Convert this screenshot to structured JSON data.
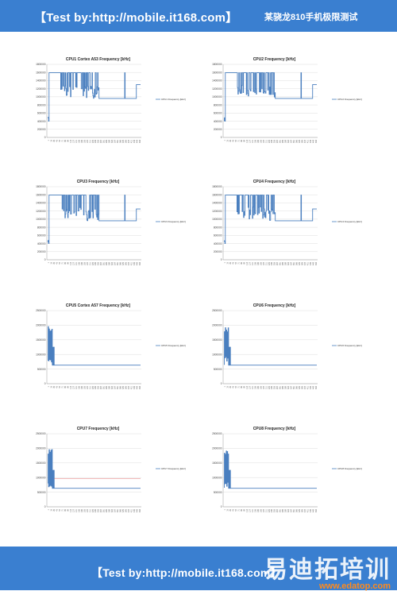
{
  "header": {
    "title": "【Test by:http://mobile.it168.com】",
    "subtitle": "某骁龙810手机极限测试"
  },
  "footer": {
    "title": "【Test by:http://mobile.it168.com】",
    "watermark_cn": "易迪拓培训",
    "watermark_url": "www.edatop.com"
  },
  "colors": {
    "band": "#3a7fd0",
    "series": "#4a7fbf",
    "red_line": "#e05050"
  },
  "chart_data": [
    {
      "type": "line",
      "title": "CPU1 Cortex A53 Frequency [kHz]",
      "legend": "CPU1 Frequency [kHz]",
      "legend_position": "right",
      "grid": true,
      "ylim": [
        0,
        1800000
      ],
      "yticks": [
        0,
        200000,
        400000,
        600000,
        800000,
        1000000,
        1200000,
        1400000,
        1600000,
        1800000
      ],
      "profile": "little",
      "end_level": 1300000
    },
    {
      "type": "line",
      "title": "CPU2 Frequency [kHz]",
      "legend": "CPU2 Frequency [kHz]",
      "legend_position": "right",
      "grid": true,
      "ylim": [
        0,
        1800000
      ],
      "yticks": [
        0,
        200000,
        400000,
        600000,
        800000,
        1000000,
        1200000,
        1400000,
        1600000,
        1800000
      ],
      "profile": "little",
      "end_level": 1300000
    },
    {
      "type": "line",
      "title": "CPU3 Frequency [kHz]",
      "legend": "CPU3 Frequency [kHz]",
      "legend_position": "right",
      "grid": true,
      "ylim": [
        0,
        1800000
      ],
      "yticks": [
        0,
        200000,
        400000,
        600000,
        800000,
        1000000,
        1200000,
        1400000,
        1600000,
        1800000
      ],
      "profile": "little",
      "end_level": 1250000
    },
    {
      "type": "line",
      "title": "CPU4 Frequency [kHz]",
      "legend": "CPU4 Frequency [kHz]",
      "legend_position": "right",
      "grid": true,
      "ylim": [
        0,
        1800000
      ],
      "yticks": [
        0,
        200000,
        400000,
        600000,
        800000,
        1000000,
        1200000,
        1400000,
        1600000,
        1800000
      ],
      "profile": "little",
      "end_level": 1250000
    },
    {
      "type": "line",
      "title": "CPU5 Cortex A57 Frequency [kHz]",
      "legend": "CPU5 Frequency [kHz]",
      "legend_position": "right",
      "grid": true,
      "ylim": [
        0,
        2500000
      ],
      "yticks": [
        0,
        500000,
        1000000,
        1500000,
        2000000,
        2500000
      ],
      "profile": "big",
      "end_level": 633600
    },
    {
      "type": "line",
      "title": "CPU6 Frequency [kHz]",
      "legend": "CPU6 Frequency [kHz]",
      "legend_position": "right",
      "grid": true,
      "ylim": [
        0,
        2500000
      ],
      "yticks": [
        0,
        500000,
        1000000,
        1500000,
        2000000,
        2500000
      ],
      "profile": "big",
      "end_level": 633600
    },
    {
      "type": "line",
      "title": "CPU7 Frequency [kHz]",
      "legend": "CPU7 Frequency [kHz]",
      "legend_position": "right",
      "grid": true,
      "ylim": [
        0,
        2500000
      ],
      "yticks": [
        0,
        500000,
        1000000,
        1500000,
        2000000,
        2500000
      ],
      "profile": "big",
      "end_level": 633600,
      "extra_level": 960000
    },
    {
      "type": "line",
      "title": "CPU8 Frequency [kHz]",
      "legend": "CPU8 Frequency [kHz]",
      "legend_position": "right",
      "grid": true,
      "ylim": [
        0,
        2500000
      ],
      "yticks": [
        0,
        500000,
        1000000,
        1500000,
        2000000,
        2500000
      ],
      "profile": "big",
      "end_level": 633600
    }
  ]
}
